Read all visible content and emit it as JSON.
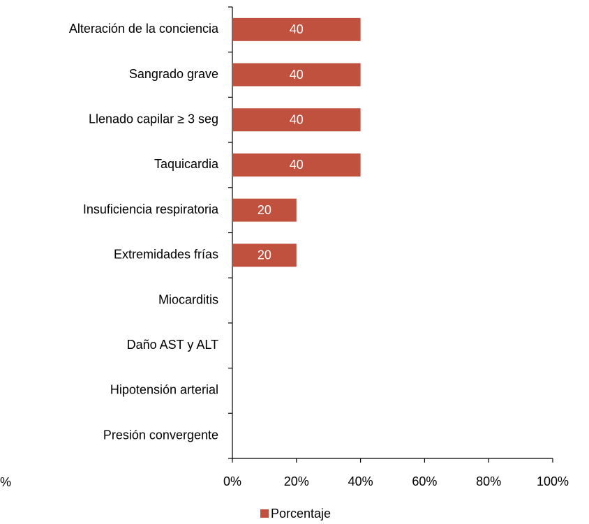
{
  "chart_data": {
    "type": "hbar",
    "categories": [
      "Alteración de la conciencia",
      "Sangrado grave",
      "Llenado capilar ≥ 3 seg",
      "Taquicardia",
      "Insuficiencia respiratoria",
      "Extremidades frías",
      "Miocarditis",
      "Daño AST y ALT",
      "Hipotensión arterial",
      "Presión convergente"
    ],
    "series": [
      {
        "name": "Porcentaje",
        "color": "#c0513f",
        "values": [
          40,
          40,
          40,
          40,
          20,
          20,
          0,
          0,
          0,
          0
        ]
      }
    ],
    "xlim": [
      0,
      100
    ],
    "xticks": [
      {
        "value": 0,
        "label": "0%"
      },
      {
        "value": 20,
        "label": "20%"
      },
      {
        "value": 40,
        "label": "40%"
      },
      {
        "value": 60,
        "label": "60%"
      },
      {
        "value": 80,
        "label": "80%"
      },
      {
        "value": 100,
        "label": "100%"
      }
    ],
    "legend": "bottom",
    "annotations": [
      "%"
    ]
  }
}
